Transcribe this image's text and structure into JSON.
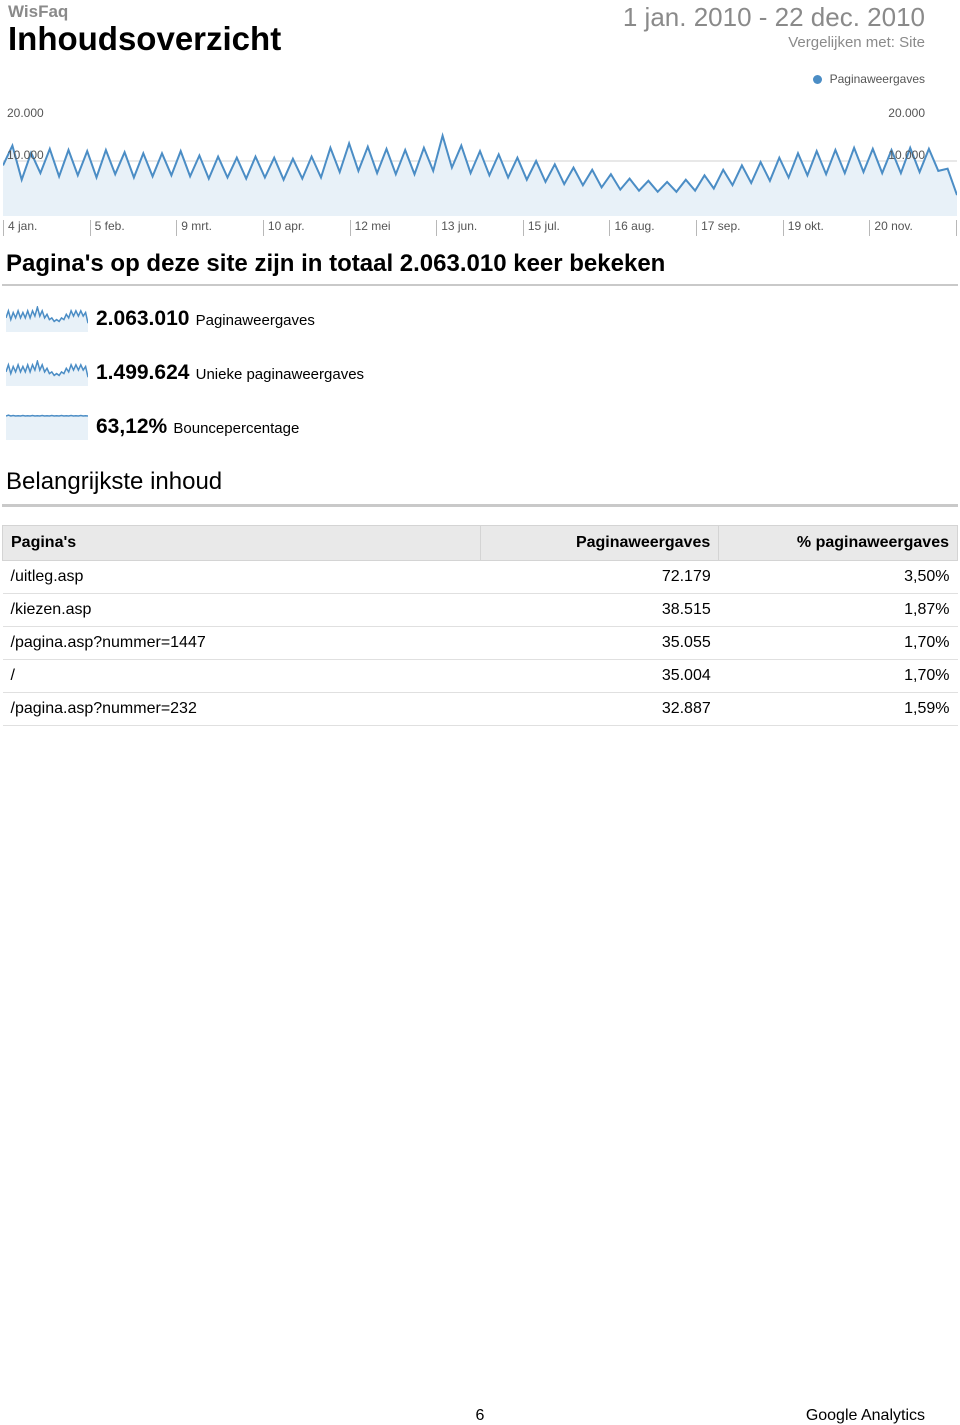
{
  "header": {
    "site_name": "WisFaq",
    "title": "Inhoudsoverzicht",
    "date_range": "1 jan. 2010 - 22 dec. 2010",
    "compare": "Vergelijken met: Site"
  },
  "legend": {
    "label": "Paginaweergaves",
    "dot_color": "#4b8dc5"
  },
  "main_chart": {
    "type": "area-line",
    "line_color": "#4b8dc5",
    "fill_color": "#e8f1f8",
    "grid_color": "#d0d0d0",
    "background_color": "#ffffff",
    "ylim": [
      0,
      20000
    ],
    "ytick_labels_left": [
      "20.000",
      "10.000"
    ],
    "ytick_labels_right": [
      "20.000",
      "10.000"
    ],
    "x_labels": [
      "4 jan.",
      "5 feb.",
      "9 mrt.",
      "10 apr.",
      "12 mei",
      "13 jun.",
      "15 jul.",
      "16 aug.",
      "17 sep.",
      "19 okt.",
      "20 nov."
    ],
    "values": [
      9200,
      12800,
      6600,
      11500,
      7800,
      12200,
      7200,
      12000,
      7400,
      11800,
      7000,
      12000,
      7600,
      11600,
      7000,
      11400,
      7200,
      11400,
      7400,
      11800,
      7200,
      11000,
      6800,
      10800,
      7000,
      10600,
      6800,
      10800,
      7000,
      10600,
      6600,
      10400,
      6800,
      10800,
      7000,
      12400,
      8000,
      13200,
      8200,
      12600,
      7800,
      12200,
      7600,
      12000,
      7600,
      12400,
      8200,
      14600,
      8800,
      12800,
      7800,
      11800,
      7400,
      11200,
      7000,
      10600,
      6600,
      10000,
      6200,
      9400,
      5800,
      8800,
      5600,
      8400,
      5200,
      7600,
      4800,
      6800,
      4600,
      6400,
      4400,
      6200,
      4400,
      6600,
      4600,
      7400,
      5000,
      8400,
      5600,
      9200,
      6000,
      9800,
      6400,
      10600,
      7000,
      11400,
      7400,
      11800,
      7600,
      12000,
      7800,
      12400,
      8000,
      12200,
      7800,
      12000,
      7800,
      12400,
      8000,
      12200,
      8200,
      8600,
      3800
    ]
  },
  "summary_line": "Pagina's op deze site zijn in totaal 2.063.010 keer bekeken",
  "metrics": [
    {
      "value": "2.063.010",
      "label": "Paginaweergaves",
      "spark": {
        "type": "area-line",
        "line_color": "#4b8dc5",
        "fill_color": "#e8f1f8",
        "values": [
          8,
          12,
          7,
          11,
          8,
          12,
          8,
          11,
          8,
          12,
          8,
          12,
          9,
          14,
          9,
          12,
          8,
          10,
          7,
          8,
          6,
          7,
          6,
          8,
          7,
          10,
          8,
          12,
          9,
          12,
          9,
          12,
          9,
          11,
          5
        ]
      }
    },
    {
      "value": "1.499.624",
      "label": "Unieke paginaweergaves",
      "spark": {
        "type": "area-line",
        "line_color": "#4b8dc5",
        "fill_color": "#e8f1f8",
        "values": [
          8,
          12,
          7,
          11,
          8,
          12,
          8,
          11,
          8,
          12,
          8,
          12,
          9,
          14,
          9,
          12,
          8,
          10,
          7,
          8,
          6,
          7,
          6,
          8,
          7,
          10,
          8,
          12,
          9,
          12,
          9,
          12,
          9,
          11,
          5
        ]
      }
    },
    {
      "value": "63,12%",
      "label": "Bouncepercentage",
      "spark": {
        "type": "area-line",
        "line_color": "#4b8dc5",
        "fill_color": "#e8f1f8",
        "values": [
          10,
          10.3,
          10,
          10.2,
          10,
          10.1,
          10,
          10.2,
          10,
          10.1,
          10,
          10.2,
          10,
          10.1,
          10,
          10.2,
          10,
          10.1,
          10,
          10.2,
          10,
          10.1,
          10,
          10.2,
          10,
          10.1,
          10,
          10.2,
          10,
          10.1,
          10,
          10.2,
          10,
          10.1,
          10
        ]
      }
    }
  ],
  "section_title": "Belangrijkste inhoud",
  "table": {
    "columns": [
      "Pagina's",
      "Paginaweergaves",
      "% paginaweergaves"
    ],
    "col_align": [
      "left",
      "right",
      "right"
    ],
    "col_widths": [
      "50%",
      "25%",
      "25%"
    ],
    "rows": [
      [
        "/uitleg.asp",
        "72.179",
        "3,50%"
      ],
      [
        "/kiezen.asp",
        "38.515",
        "1,87%"
      ],
      [
        "/pagina.asp?nummer=1447",
        "35.055",
        "1,70%"
      ],
      [
        "/",
        "35.004",
        "1,70%"
      ],
      [
        "/pagina.asp?nummer=232",
        "32.887",
        "1,59%"
      ]
    ]
  },
  "footer": {
    "page_number": "6",
    "brand": "Google Analytics"
  }
}
